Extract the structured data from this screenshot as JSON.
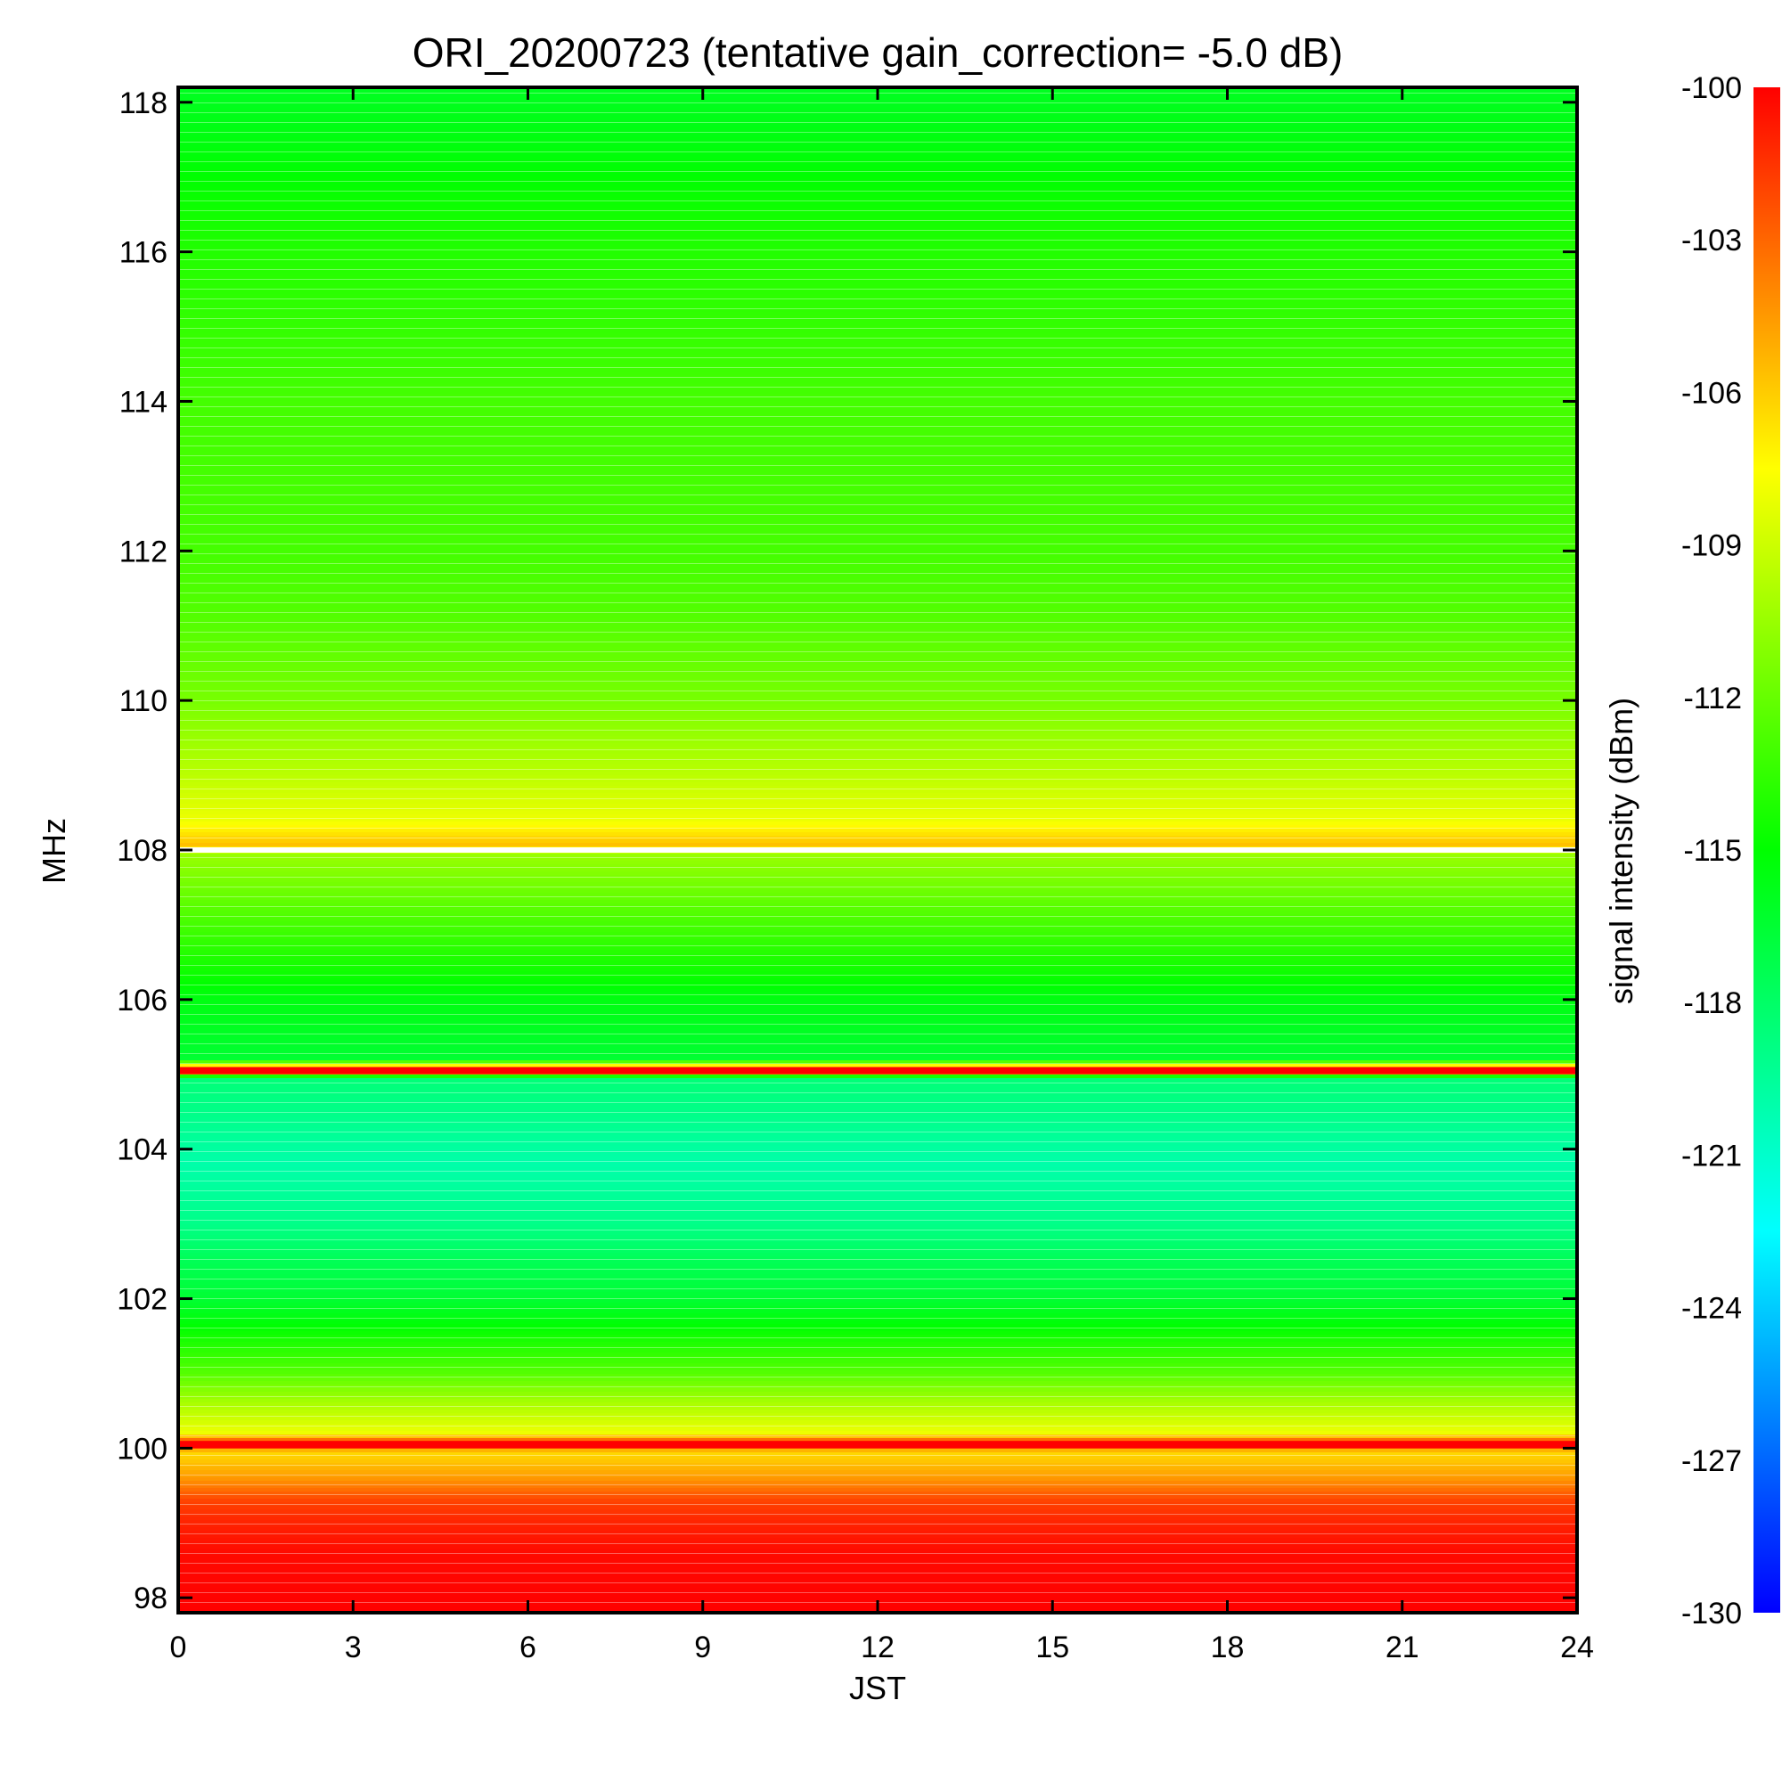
{
  "chart_data": {
    "type": "heatmap",
    "title": "ORI_20200723 (tentative gain_correction= -5.0 dB)",
    "xlabel": "JST",
    "ylabel": "MHz",
    "xlim": [
      0,
      24
    ],
    "ylim": [
      97.8,
      118.2
    ],
    "xticks": [
      0,
      3,
      6,
      9,
      12,
      15,
      18,
      21,
      24
    ],
    "yticks": [
      98,
      100,
      102,
      104,
      106,
      108,
      110,
      112,
      114,
      116,
      118
    ],
    "colorbar": {
      "label": "signal intensity (dBm)",
      "range": [
        -130,
        -100
      ],
      "ticks": [
        -100,
        -103,
        -106,
        -109,
        -112,
        -115,
        -118,
        -121,
        -124,
        -127,
        -130
      ]
    },
    "frequency_profile": [
      {
        "mhz": 97.8,
        "dbm": -100.0
      },
      {
        "mhz": 98.6,
        "dbm": -100.3
      },
      {
        "mhz": 99.0,
        "dbm": -101.0
      },
      {
        "mhz": 99.3,
        "dbm": -102.0
      },
      {
        "mhz": 99.6,
        "dbm": -104.5
      },
      {
        "mhz": 99.95,
        "dbm": -106.5
      },
      {
        "mhz": 100.05,
        "dbm": -100.0
      },
      {
        "mhz": 100.2,
        "dbm": -108.0
      },
      {
        "mhz": 100.6,
        "dbm": -110.0
      },
      {
        "mhz": 101.0,
        "dbm": -112.5
      },
      {
        "mhz": 101.5,
        "dbm": -114.5
      },
      {
        "mhz": 102.0,
        "dbm": -116.5
      },
      {
        "mhz": 102.5,
        "dbm": -117.5
      },
      {
        "mhz": 103.0,
        "dbm": -119.0
      },
      {
        "mhz": 103.8,
        "dbm": -120.0
      },
      {
        "mhz": 104.5,
        "dbm": -119.0
      },
      {
        "mhz": 104.95,
        "dbm": -118.5
      },
      {
        "mhz": 105.05,
        "dbm": -100.0
      },
      {
        "mhz": 105.2,
        "dbm": -116.5
      },
      {
        "mhz": 106.0,
        "dbm": -115.5
      },
      {
        "mhz": 107.0,
        "dbm": -113.0
      },
      {
        "mhz": 107.95,
        "dbm": -110.5
      },
      {
        "mhz": 108.05,
        "dbm": -105.5
      },
      {
        "mhz": 108.4,
        "dbm": -108.0
      },
      {
        "mhz": 109.0,
        "dbm": -109.5
      },
      {
        "mhz": 110.0,
        "dbm": -111.5
      },
      {
        "mhz": 111.0,
        "dbm": -112.5
      },
      {
        "mhz": 112.0,
        "dbm": -113.0
      },
      {
        "mhz": 114.0,
        "dbm": -113.0
      },
      {
        "mhz": 116.0,
        "dbm": -114.0
      },
      {
        "mhz": 117.0,
        "dbm": -115.0
      },
      {
        "mhz": 118.2,
        "dbm": -116.0
      }
    ],
    "bright_lines_mhz": [
      100.05,
      105.05
    ],
    "white_line_mhz": 108.0,
    "grid": false
  }
}
